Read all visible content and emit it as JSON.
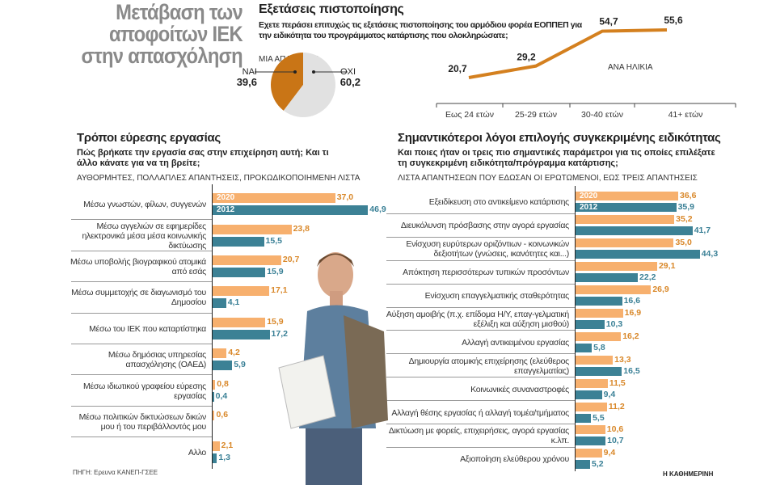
{
  "main_title": "Μετάβαση των αποφοίτων ΙΕΚ στην απασχόληση",
  "colors": {
    "y2020": "#f7b06e",
    "y2012": "#3c8195",
    "line": "#d4801f",
    "pie_yes": "#c97516",
    "pie_no": "#e1e1e1",
    "val2020": "#d9882a",
    "val2012": "#3a8096"
  },
  "exams": {
    "title": "Εξετάσεις πιστοποίησης",
    "question": "Εχετε περάσει επιτυχώς τις εξετάσεις πιστοποίησης του αρμόδιου φορέα ΕΟΠΠΕΠ για την ειδικότητα του προγράμματος κατάρτισης που ολοκληρώσατε;",
    "note": "ΜΙΑ ΑΠΑΝΤΗΣΗ",
    "age_label": "ΑΝΑ ΗΛΙΚΙΑ"
  },
  "chart_data": [
    {
      "type": "pie",
      "slices": [
        {
          "name": "ΝΑΙ",
          "value": 39.6
        },
        {
          "name": "ΟΧΙ",
          "value": 60.2
        }
      ]
    },
    {
      "type": "line",
      "categories": [
        "Εως 24 ετών",
        "25-29 ετών",
        "30-40 ετών",
        "41+ ετών"
      ],
      "values": [
        20.7,
        29.2,
        54.7,
        55.6
      ]
    },
    {
      "type": "bar",
      "title": "Τρόποι εύρεσης εργασίας",
      "subtitle": "Πώς βρήκατε την εργασία σας στην επιχείρηση αυτή; Και τι άλλο κάνατε για να τη βρείτε;",
      "note": "ΑΥΘΟΡΜΗΤΕΣ, ΠΟΛΛΑΠΛΕΣ ΑΠΑΝΤΗΣΕΙΣ, ΠΡΟΚΩΔΙΚΟΠΟΙΗΜΕΝΗ ΛΙΣΤΑ",
      "categories": [
        "Μέσω γνωστών, φίλων, συγγενών",
        "Μέσω αγγελιών σε εφημερίδες ηλεκτρονικά μέσα μέσα κοινωνικής δικτύωσης",
        "Μέσω υποβολής βιογραφικού ατομικά από εσάς",
        "Μέσω συμμετοχής σε διαγωνισμό του Δημοσίου",
        "Μέσω του ΙΕΚ που καταρτίστηκα",
        "Μέσω δημόσιας υπηρεσίας απασχόλησης (ΟΑΕΔ)",
        "Μέσω ιδιωτικού γραφείου εύρεσης εργασίας",
        "Μέσω πολιτικών δικτυώσεων δικών μου ή του περιβάλλοντός μου",
        "Αλλο"
      ],
      "series": [
        {
          "name": "2020",
          "values": [
            "37,0",
            "23,8",
            "20,7",
            "17,1",
            "15,9",
            "4,2",
            "0,8",
            "0,6",
            "2,1"
          ]
        },
        {
          "name": "2012",
          "values": [
            "46,9",
            "15,5",
            "15,9",
            "4,1",
            "17,2",
            "5,9",
            "0,4",
            null,
            "1,3"
          ]
        }
      ]
    },
    {
      "type": "bar",
      "title": "Σημαντικότεροι λόγοι επιλογής συγκεκριμένης ειδικότητας",
      "subtitle": "Και ποιες ήταν οι τρεις πιο σημαντικές παράμετροι για τις οποίες επιλέξατε τη συγκεκριμένη ειδικότητα/πρόγραμμα κατάρτισης;",
      "note": "ΛΙΣΤΑ ΑΠΑΝΤΗΣΕΩΝ ΠΟΥ ΕΔΩΣΑΝ ΟΙ ΕΡΩΤΩΜΕΝΟΙ, ΕΩΣ ΤΡΕΙΣ ΑΠΑΝΤΗΣΕΙΣ",
      "categories": [
        "Εξειδίκευση στο αντικείμενο κατάρτισης",
        "Διευκόλυνση πρόσβασης στην αγορά εργασίας",
        "Ενίσχυση ευρύτερων οριζόντιων - κοινωνικών δεξιοτήτων (γνώσεις, ικανότητες και...)",
        "Απόκτηση περισσότερων τυπικών προσόντων",
        "Ενίσχυση επαγγελματικής σταθερότητας",
        "Αύξηση αμοιβής (π.χ. επίδομα Η/Υ, επαγ-γελματική εξέλιξη και αύξηση μισθού)",
        "Αλλαγή αντικειμένου εργασίας",
        "Δημιουργία ατομικής επιχείρησης (ελεύθερος επαγγελματίας)",
        "Κοινωνικές συναναστροφές",
        "Αλλαγή θέσης εργασίας ή αλλαγή τομέα/τμήματος",
        "Δικτύωση με φορείς, επιχειρήσεις, αγορά εργασίας κ.λπ.",
        "Αξιοποίηση ελεύθερου χρόνου"
      ],
      "series": [
        {
          "name": "2020",
          "values": [
            "36,6",
            "35,2",
            "35,0",
            "29,1",
            "26,9",
            "16,9",
            "16,2",
            "13,3",
            "11,5",
            "11,2",
            "10,6",
            "9,4"
          ]
        },
        {
          "name": "2012",
          "values": [
            "35,9",
            "41,7",
            "44,3",
            "22,2",
            "16,6",
            "10,3",
            "5,8",
            "16,5",
            "9,4",
            "5,5",
            "10,7",
            "5,2"
          ]
        }
      ]
    }
  ],
  "source": "ΠΗΓΗ: Ερευνα ΚΑΝΕΠ-ΓΣΕΕ",
  "publisher": "Η ΚΑΘΗΜΕΡΙΝΗ"
}
